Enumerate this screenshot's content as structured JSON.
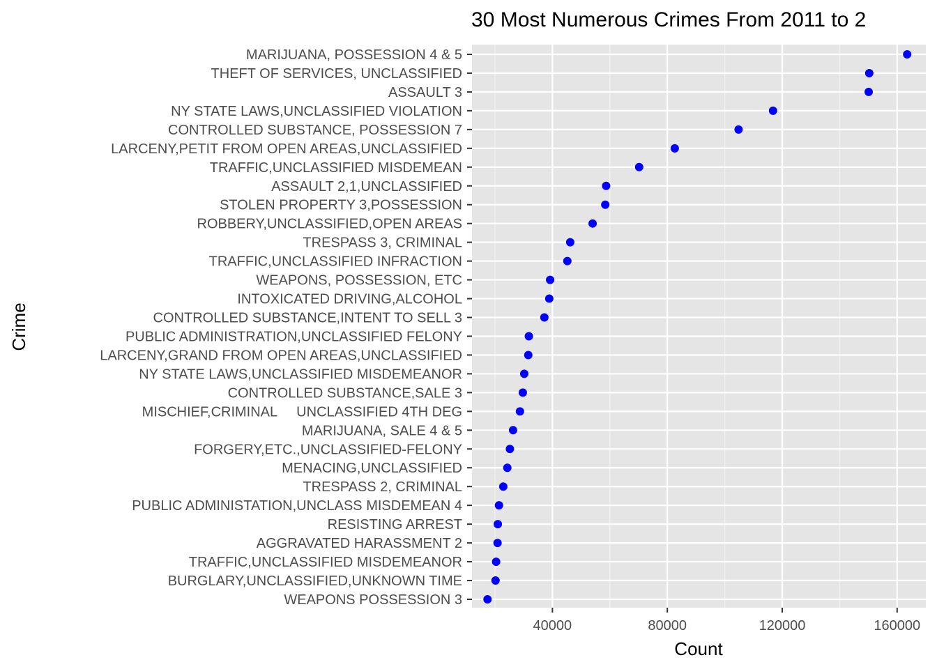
{
  "chart_data": {
    "type": "scatter",
    "title": "30 Most Numerous Crimes From 2011 to 2",
    "xlabel": "Count",
    "ylabel": "Crime",
    "xlim": [
      12000,
      170000
    ],
    "xticks": [
      40000,
      80000,
      120000,
      160000
    ],
    "xtick_labels": [
      "40000",
      "80000",
      "120000",
      "160000"
    ],
    "grid": true,
    "point_color": "#0000ff",
    "panel_color": "#e5e5e5",
    "categories": [
      "MARIJUANA, POSSESSION 4 & 5",
      "THEFT OF SERVICES, UNCLASSIFIED",
      "ASSAULT 3",
      "NY STATE LAWS,UNCLASSIFIED VIOLATION",
      "CONTROLLED SUBSTANCE, POSSESSION 7",
      "LARCENY,PETIT FROM OPEN AREAS,UNCLASSIFIED",
      "TRAFFIC,UNCLASSIFIED MISDEMEAN",
      "ASSAULT 2,1,UNCLASSIFIED",
      "STOLEN PROPERTY 3,POSSESSION",
      "ROBBERY,UNCLASSIFIED,OPEN AREAS",
      "TRESPASS 3, CRIMINAL",
      "TRAFFIC,UNCLASSIFIED INFRACTION",
      "WEAPONS, POSSESSION, ETC",
      "INTOXICATED DRIVING,ALCOHOL",
      "CONTROLLED SUBSTANCE,INTENT TO SELL 3",
      "PUBLIC ADMINISTRATION,UNCLASSIFIED FELONY",
      "LARCENY,GRAND FROM OPEN AREAS,UNCLASSIFIED",
      "NY STATE LAWS,UNCLASSIFIED MISDEMEANOR",
      "CONTROLLED SUBSTANCE,SALE 3",
      "MISCHIEF,CRIMINAL     UNCLASSIFIED 4TH DEG",
      "MARIJUANA, SALE 4 & 5",
      "FORGERY,ETC.,UNCLASSIFIED-FELONY",
      "MENACING,UNCLASSIFIED",
      "TRESPASS 2, CRIMINAL",
      "PUBLIC ADMINISTATION,UNCLASS MISDEMEAN 4",
      "RESISTING ARREST",
      "AGGRAVATED HARASSMENT 2",
      "TRAFFIC,UNCLASSIFIED MISDEMEANOR",
      "BURGLARY,UNCLASSIFIED,UNKNOWN TIME",
      "WEAPONS POSSESSION 3"
    ],
    "values": [
      163500,
      150300,
      150100,
      116800,
      104800,
      82600,
      70200,
      58700,
      58400,
      54000,
      46200,
      45200,
      39200,
      38900,
      37200,
      31800,
      31600,
      30200,
      29700,
      28700,
      26300,
      25200,
      24300,
      22900,
      21400,
      21000,
      20900,
      20400,
      20200,
      17400
    ]
  }
}
